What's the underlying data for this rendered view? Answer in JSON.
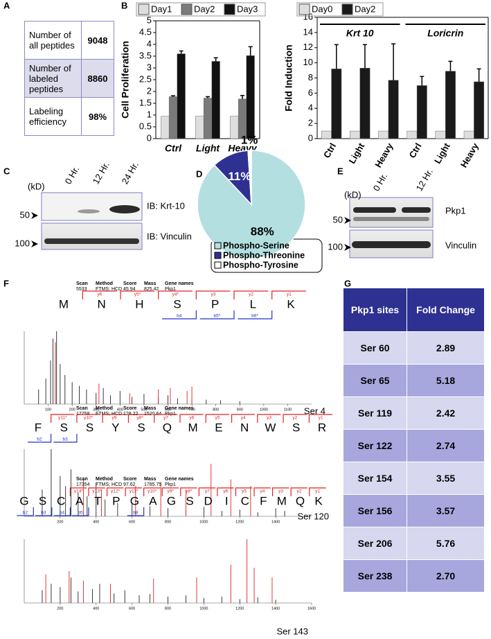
{
  "panel_labels": [
    "A",
    "B",
    "C",
    "D",
    "E",
    "F",
    "G"
  ],
  "table_a": {
    "rows": [
      [
        "Number of all peptides",
        "9048"
      ],
      [
        "Number of labeled peptides",
        "8860"
      ],
      [
        "Labeling efficiency",
        "98%"
      ]
    ]
  },
  "chart_data": [
    {
      "type": "bar",
      "y_label": "Cell Proliferation",
      "categories": [
        "Ctrl",
        "Light",
        "Heavy"
      ],
      "series": [
        {
          "name": "Day1",
          "color": "#dedede",
          "values": [
            0.95,
            0.95,
            0.95
          ]
        },
        {
          "name": "Day2",
          "color": "#7a7a7a",
          "values": [
            1.78,
            1.72,
            1.68
          ],
          "errors": [
            0.04,
            0.06,
            0.15
          ]
        },
        {
          "name": "Day3",
          "color": "#111111",
          "values": [
            3.6,
            3.28,
            3.52
          ],
          "errors": [
            0.12,
            0.15,
            0.38
          ]
        }
      ],
      "ylim": [
        0,
        5
      ],
      "yticks": [
        0,
        0.5,
        1,
        1.5,
        2,
        2.5,
        3,
        3.5,
        4,
        4.5,
        5
      ],
      "grid": false
    },
    {
      "type": "bar",
      "y_label": "Fold  Induction",
      "categories": [
        "Ctrl",
        "Light",
        "Heavy",
        "Ctrl",
        "Light",
        "Heavy"
      ],
      "group_labels": [
        "Krt 10",
        "Loricrin"
      ],
      "series": [
        {
          "name": "Day0",
          "color": "#dedede",
          "values": [
            1,
            1,
            1,
            1,
            1,
            1
          ]
        },
        {
          "name": "Day2",
          "color": "#1a1a1a",
          "values": [
            9.2,
            9.3,
            7.7,
            7.0,
            8.9,
            7.5
          ],
          "errors": [
            3.2,
            3.1,
            4.8,
            1.2,
            1.3,
            1.7
          ]
        }
      ],
      "ylim": [
        0,
        16
      ],
      "yticks": [
        0,
        2,
        4,
        6,
        8,
        10,
        12,
        14,
        16
      ],
      "grid": false
    },
    {
      "type": "pie",
      "categories": [
        "Phospho-Serine",
        "Phospho-Threonine",
        "Phospho-Tyrosine"
      ],
      "values": [
        88,
        11,
        1
      ],
      "value_labels": [
        "88%",
        "11%",
        "1%"
      ],
      "colors": [
        "#b3dfe1",
        "#2e3192",
        "#ffffff"
      ]
    }
  ],
  "blot_c": {
    "unit": "(kD)",
    "lanes": [
      "0 Hr.",
      "12 Hr.",
      "24 Hr."
    ],
    "markers": [
      50,
      100
    ],
    "antibodies": [
      "IB: Krt-10",
      "IB: Vinculin"
    ]
  },
  "blot_e": {
    "unit": "(kD)",
    "lanes": [
      "0 Hr.",
      "12 Hr."
    ],
    "markers": [
      50,
      100
    ],
    "antibodies": [
      "Pkp1",
      "Vinculin"
    ]
  },
  "spectra": [
    {
      "info_labels": [
        "Scan",
        "Method",
        "Score",
        "Mass",
        "Gene names"
      ],
      "info_values": [
        "5533",
        "FTMS; HCD",
        "45.94",
        "825.42",
        "Pkp1"
      ],
      "sequence": [
        "M",
        "N",
        "H",
        "S",
        "P",
        "L",
        "K"
      ],
      "y_ions": [
        "y6",
        "y5*",
        "y4*",
        "y3",
        "y2",
        "y1"
      ],
      "b_ions": [
        null,
        null,
        null,
        "b4",
        "b5*",
        "b6*"
      ],
      "site": "Ser 4",
      "xlim": [
        0,
        1200
      ],
      "ylim": [
        0,
        100
      ],
      "xticks": [
        100,
        200,
        300,
        400,
        500,
        600,
        700,
        800,
        900,
        1000,
        1100
      ],
      "series": [
        {
          "color": "#222222",
          "x": [
            60,
            90,
            110,
            120,
            135,
            150,
            170,
            200,
            230,
            260,
            300,
            330,
            360,
            400,
            450,
            500,
            560,
            600,
            640,
            700,
            760,
            820,
            900
          ],
          "values": [
            20,
            35,
            60,
            90,
            100,
            55,
            40,
            30,
            25,
            20,
            15,
            22,
            12,
            18,
            10,
            14,
            9,
            12,
            8,
            7,
            6,
            5,
            4
          ]
        },
        {
          "color": "#e02020",
          "x": [
            130,
            312,
            440,
            560,
            610,
            680,
            700
          ],
          "values": [
            85,
            28,
            15,
            20,
            22,
            18,
            24
          ]
        }
      ]
    },
    {
      "info_labels": [
        "Scan",
        "Method",
        "Score",
        "Mass",
        "Gene names"
      ],
      "info_values": [
        "17758",
        "FTMS; HCD",
        "128.22",
        "1520.64",
        "Pkp1"
      ],
      "sequence": [
        "F",
        "S",
        "S",
        "Y",
        "S",
        "Q",
        "M",
        "E",
        "N",
        "W",
        "S",
        "R"
      ],
      "y_ions": [
        "y11*",
        "y10*",
        "y9",
        "y8*",
        "y7",
        "y6",
        "y5",
        "y4",
        "y3",
        "y2",
        "y1"
      ],
      "b_ions": [
        "b2",
        "b3",
        null,
        null,
        null,
        null,
        null,
        null,
        null,
        null,
        null
      ],
      "site": "Ser 120",
      "xlim": [
        0,
        1600
      ],
      "ylim": [
        0,
        100
      ],
      "xticks": [
        200,
        400,
        600,
        800,
        1000,
        1200,
        1400
      ],
      "series": [
        {
          "color": "#222222",
          "x": [
            100,
            150,
            200,
            230,
            260,
            300,
            350,
            400,
            450,
            520,
            600,
            700,
            800,
            900,
            1000,
            1100,
            1200,
            1300,
            1400,
            1450
          ],
          "values": [
            40,
            100,
            60,
            45,
            70,
            35,
            30,
            50,
            25,
            20,
            18,
            15,
            12,
            10,
            14,
            8,
            10,
            6,
            12,
            8
          ]
        },
        {
          "color": "#e02020",
          "x": [
            330,
            430,
            620,
            760,
            900,
            1040,
            1150,
            1260
          ],
          "values": [
            55,
            40,
            45,
            50,
            40,
            78,
            55,
            45
          ]
        }
      ]
    },
    {
      "info_labels": [
        "Scan",
        "Method",
        "Score",
        "Mass",
        "Gene names"
      ],
      "info_values": [
        "17354",
        "FTMS; HCD",
        "97.62",
        "1785.75",
        "Pkp1"
      ],
      "sequence": [
        "G",
        "S",
        "C",
        "A",
        "T",
        "P",
        "G",
        "A",
        "G",
        "S",
        "D",
        "I",
        "C",
        "F",
        "M",
        "Q",
        "K"
      ],
      "y_ions": [
        null,
        null,
        "y14*",
        "y13*",
        "y12*",
        "y11*",
        "y10*",
        "y9*",
        "y8*",
        "y7",
        "y6",
        "y5",
        "y4",
        "y3",
        "y2",
        "y1"
      ],
      "b_ions": [
        "b2",
        "b3",
        "b4",
        "b5",
        null,
        null,
        "b8",
        null,
        null,
        null,
        null,
        null,
        null,
        null,
        null,
        null
      ],
      "site": "Ser 143",
      "xlim": [
        0,
        1600
      ],
      "ylim": [
        0,
        100
      ],
      "xticks": [
        200,
        400,
        600,
        800,
        1000,
        1200,
        1400,
        1600
      ],
      "series": [
        {
          "color": "#222222",
          "x": [
            100,
            150,
            200,
            260,
            300,
            380,
            420,
            500,
            560,
            640,
            700,
            800,
            900,
            1000,
            1100,
            1200,
            1300,
            1400
          ],
          "values": [
            20,
            30,
            25,
            40,
            18,
            22,
            30,
            15,
            20,
            12,
            14,
            10,
            12,
            8,
            10,
            6,
            9,
            5
          ]
        },
        {
          "color": "#e02020",
          "x": [
            120,
            250,
            330,
            480,
            720,
            960,
            1150,
            1240,
            1280,
            1380
          ],
          "values": [
            45,
            50,
            35,
            30,
            38,
            40,
            60,
            100,
            55,
            40
          ]
        }
      ]
    }
  ],
  "table_g": {
    "header": [
      "Pkp1 sites",
      "Fold Change"
    ],
    "rows": [
      [
        "Ser 60",
        "2.89"
      ],
      [
        "Ser 65",
        "5.18"
      ],
      [
        "Ser 119",
        "2.42"
      ],
      [
        "Ser 122",
        "2.74"
      ],
      [
        "Ser 154",
        "3.55"
      ],
      [
        "Ser 156",
        "3.57"
      ],
      [
        "Ser 206",
        "5.76"
      ],
      [
        "Ser  238",
        "2.70"
      ]
    ]
  }
}
